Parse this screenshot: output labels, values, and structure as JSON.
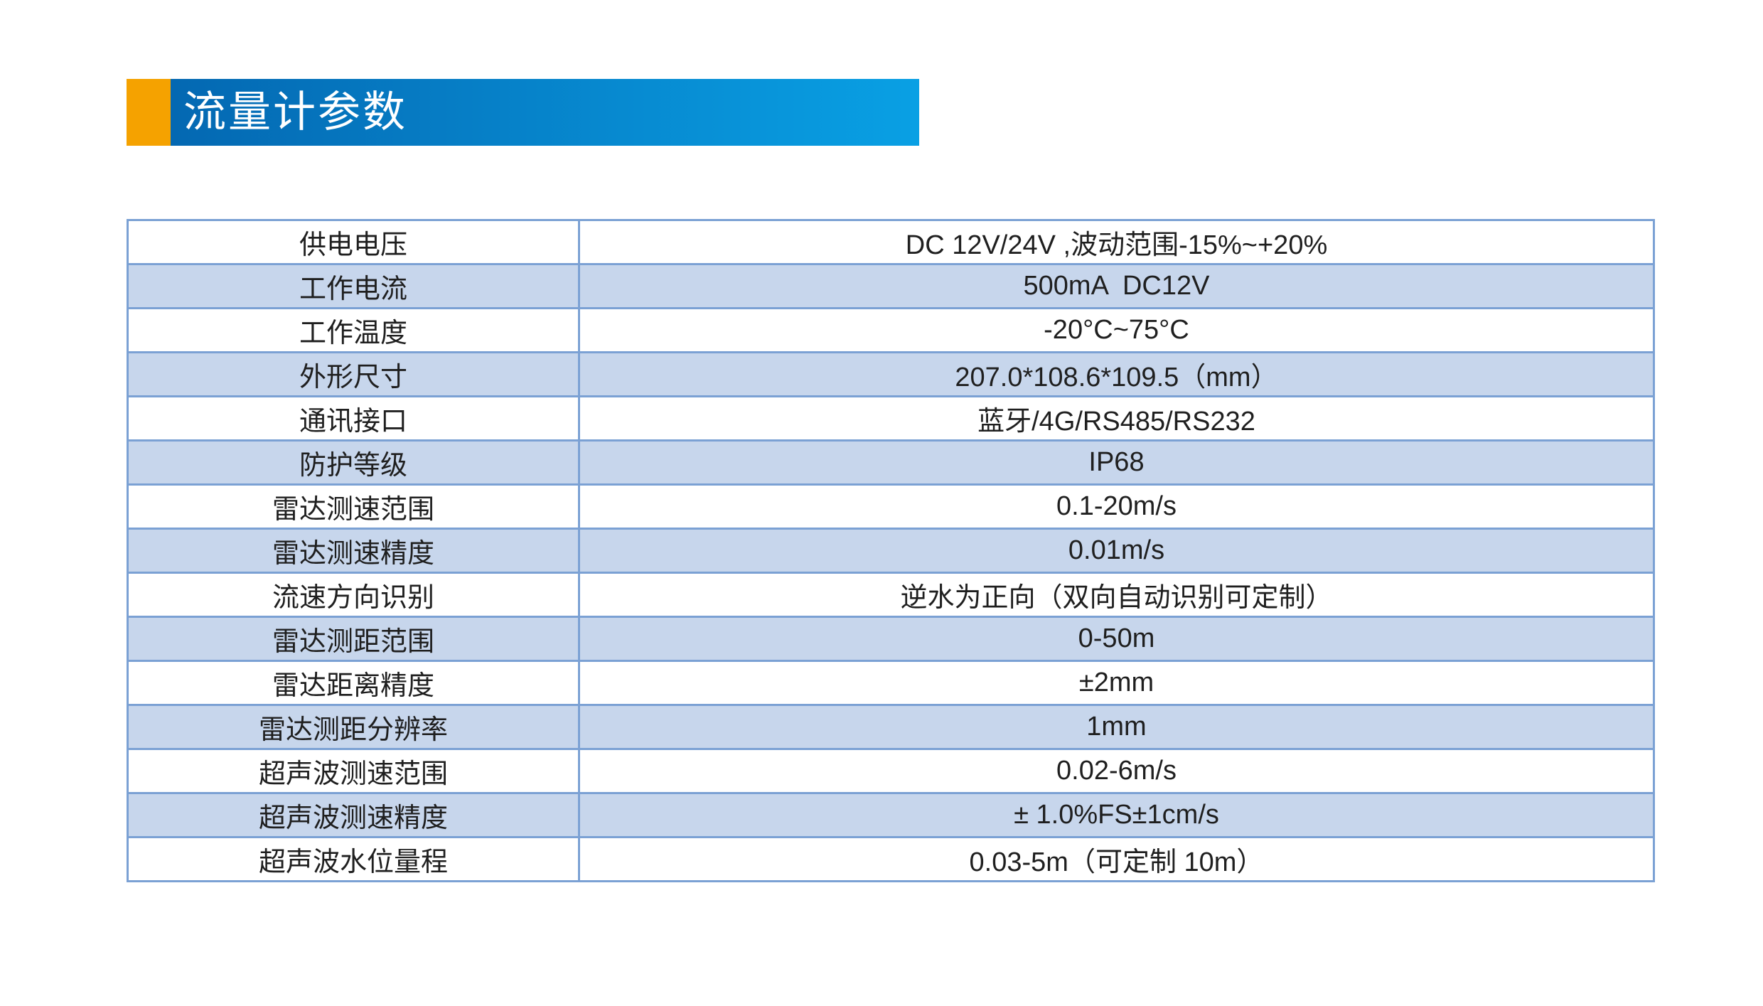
{
  "page": {
    "background": "#ffffff"
  },
  "header": {
    "title": "流量计参数",
    "accent_color": "#f5a200",
    "gradient_start": "#0468b2",
    "gradient_end": "#09a0e4",
    "text_color": "#ffffff"
  },
  "table": {
    "band_color": "#c7d6ec",
    "border_color": "#7ba1d4",
    "rows": [
      {
        "label": "供电电压",
        "value": "DC 12V/24V ,波动范围-15%~+20%"
      },
      {
        "label": "工作电流",
        "value": "500mA  DC12V"
      },
      {
        "label": "工作温度",
        "value": "-20°C~75°C"
      },
      {
        "label": "外形尺寸",
        "value": "207.0*108.6*109.5（mm）"
      },
      {
        "label": "通讯接口",
        "value": "蓝牙/4G/RS485/RS232"
      },
      {
        "label": "防护等级",
        "value": "IP68"
      },
      {
        "label": "雷达测速范围",
        "value": "0.1-20m/s"
      },
      {
        "label": "雷达测速精度",
        "value": "0.01m/s"
      },
      {
        "label": "流速方向识别",
        "value": "逆水为正向（双向自动识别可定制）"
      },
      {
        "label": "雷达测距范围",
        "value": "0-50m"
      },
      {
        "label": "雷达距离精度",
        "value": "±2mm"
      },
      {
        "label": "雷达测距分辨率",
        "value": "1mm"
      },
      {
        "label": "超声波测速范围",
        "value": "0.02-6m/s"
      },
      {
        "label": "超声波测速精度",
        "value": "± 1.0%FS±1cm/s"
      },
      {
        "label": "超声波水位量程",
        "value": "0.03-5m（可定制 10m）"
      }
    ]
  }
}
